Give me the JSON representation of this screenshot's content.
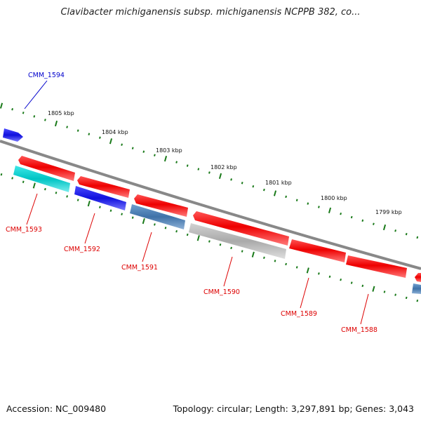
{
  "title": "Clavibacter michiganensis subsp. michiganensis NCPPB 382, co...",
  "accession": "Accession: NC_009480",
  "summary": "Topology: circular; Length: 3,297,891 bp; Genes: 3,043",
  "colors": {
    "backbone": "#888888",
    "ticks": "#1a7a1a",
    "forward_label": "#0000cc",
    "reverse_label": "#dd0000",
    "red": "#ee0000",
    "blue": "#1010dd",
    "cyan": "#00cccc",
    "steel": "#4a7fb5",
    "grey": "#b8b8b8"
  },
  "scale_labels": [
    "1805 kbp",
    "1804 kbp",
    "1803 kbp",
    "1802 kbp",
    "1801 kbp",
    "1800 kbp",
    "1799 kbp"
  ],
  "genes": {
    "forward": [
      {
        "label": "CMM_1594",
        "color": "blue"
      }
    ],
    "reverse": [
      {
        "label": "CMM_1593"
      },
      {
        "label": "CMM_1592"
      },
      {
        "label": "CMM_1591"
      },
      {
        "label": "CMM_1590"
      },
      {
        "label": "CMM_1589"
      },
      {
        "label": "CMM_1588"
      }
    ]
  }
}
